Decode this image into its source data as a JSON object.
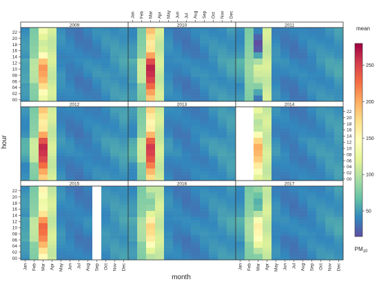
{
  "chart_data": {
    "type": "heatmap",
    "title": "",
    "xlabel": "month",
    "ylabel": "hour",
    "months": [
      "Jan",
      "Feb",
      "Mar",
      "Apr",
      "May",
      "Jun",
      "Jul",
      "Aug",
      "Sep",
      "Oct",
      "Nov",
      "Dec"
    ],
    "hour_ticks": [
      "00",
      "02",
      "04",
      "06",
      "08",
      "10",
      "12",
      "14",
      "16",
      "18",
      "20",
      "22"
    ],
    "panels": [
      {
        "year": "2009",
        "missing_months": [],
        "peak_month": "Mar",
        "peak_value": 210
      },
      {
        "year": "2010",
        "missing_months": [],
        "peak_month": "Mar",
        "peak_value": 265
      },
      {
        "year": "2011",
        "missing_months": [],
        "peak_month": "Mar",
        "peak_value": 115
      },
      {
        "year": "2012",
        "missing_months": [],
        "peak_month": "Mar",
        "peak_value": 262
      },
      {
        "year": "2013",
        "missing_months": [],
        "peak_month": "Mar",
        "peak_value": 255
      },
      {
        "year": "2014",
        "missing_months": [
          "Jan",
          "Feb"
        ],
        "peak_month": "Mar",
        "peak_value": 200
      },
      {
        "year": "2015",
        "missing_months": [
          "Sep"
        ],
        "peak_month": "Mar",
        "peak_value": 230
      },
      {
        "year": "2016",
        "missing_months": [],
        "peak_month": "Mar",
        "peak_value": 180
      },
      {
        "year": "2017",
        "missing_months": [],
        "peak_month": "Mar",
        "peak_value": 160
      }
    ],
    "colorbar": {
      "title": "mean",
      "unit_label": "PM",
      "unit_sub": "10",
      "ticks": [
        50,
        100,
        150,
        200,
        250
      ],
      "range": [
        15,
        280
      ],
      "colors": [
        "#5e4fa2",
        "#3288bd",
        "#66c2a5",
        "#abdda4",
        "#e6f598",
        "#ffffbf",
        "#fee08b",
        "#fdae61",
        "#f46d43",
        "#d53e4f",
        "#9e0142"
      ]
    }
  }
}
